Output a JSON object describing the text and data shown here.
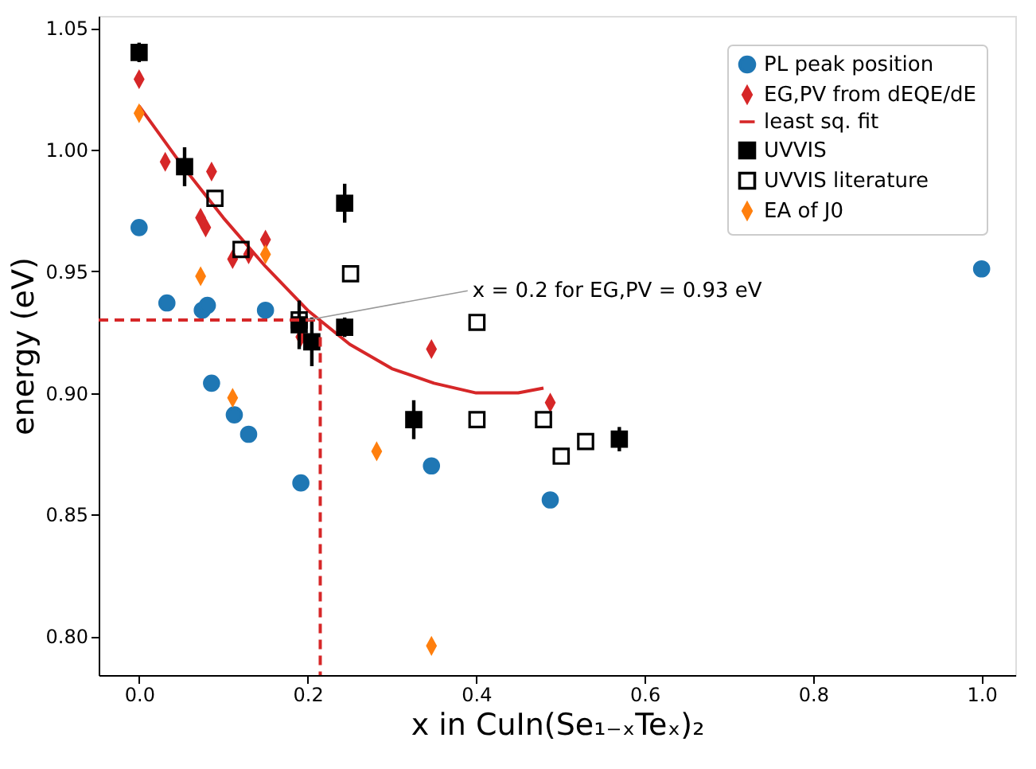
{
  "chart_data": {
    "type": "scatter",
    "xlabel": "x in CuIn(Se₁₋ₓTeₓ)₂",
    "ylabel": "energy (eV)",
    "xlim": [
      -0.048,
      1.04
    ],
    "ylim": [
      0.784,
      1.055
    ],
    "xticks": [
      {
        "value": 0,
        "label": "0.0"
      },
      0.2,
      0.4,
      0.6,
      0.8,
      {
        "value": 1,
        "label": "1.0"
      }
    ],
    "yticks": [
      {
        "value": 0.8,
        "label": "0.80"
      },
      {
        "value": 0.85,
        "label": "0.85"
      },
      {
        "value": 0.9,
        "label": "0.90"
      },
      {
        "value": 0.95,
        "label": "0.95"
      },
      {
        "value": 1.0,
        "label": "1.00"
      },
      {
        "value": 1.05,
        "label": "1.05"
      }
    ],
    "grid": false,
    "legend": "top right",
    "annotations": [
      {
        "text": "x = 0.2 for EG,PV = 0.93 eV",
        "x": 0.2,
        "y": 0.93
      }
    ],
    "series": [
      {
        "name": "PL peak position",
        "type": "scatter",
        "marker": "circle",
        "color": "#1f77b4",
        "x": [
          0,
          0.033,
          0.075,
          0.081,
          0.086,
          0.113,
          0.13,
          0.15,
          0.192,
          0.347,
          0.488,
          1.0
        ],
        "values": [
          0.968,
          0.937,
          0.934,
          0.936,
          0.904,
          0.891,
          0.883,
          0.934,
          0.863,
          0.87,
          0.856,
          0.951
        ]
      },
      {
        "name": "EG,PV from dEQE/dE",
        "type": "scatter",
        "marker": "diamond",
        "color": "#d62728",
        "x": [
          0,
          0.031,
          0.086,
          0.073,
          0.079,
          0.111,
          0.13,
          0.15,
          0.192,
          0.347,
          0.488
        ],
        "values": [
          1.029,
          0.995,
          0.991,
          0.972,
          0.968,
          0.955,
          0.957,
          0.963,
          0.923,
          0.918,
          0.896
        ]
      },
      {
        "name": "least sq. fit",
        "type": "line",
        "line_style": "solid",
        "marker": "none",
        "color": "#d62728",
        "x": [
          0,
          0.05,
          0.1,
          0.15,
          0.2,
          0.25,
          0.3,
          0.35,
          0.4,
          0.45,
          0.48
        ],
        "values": [
          1.018,
          0.994,
          0.972,
          0.952,
          0.934,
          0.92,
          0.91,
          0.904,
          0.9,
          0.9,
          0.902
        ]
      },
      {
        "name": "UVVIS",
        "type": "scatter",
        "marker": "square",
        "color": "#000000",
        "x": [
          0,
          0.054,
          0.244,
          0.244,
          0.19,
          0.205,
          0.326,
          0.57
        ],
        "values": [
          1.04,
          0.993,
          0.978,
          0.927,
          0.928,
          0.921,
          0.889,
          0.881
        ],
        "errors": [
          0.004,
          0.008,
          0.008,
          0.004,
          0.01,
          0.01,
          0.008,
          0.005
        ]
      },
      {
        "name": "UVVIS literature",
        "type": "scatter",
        "marker": "square-open",
        "color": "#000000",
        "x": [
          0.09,
          0.121,
          0.19,
          0.251,
          0.401,
          0.401,
          0.48,
          0.501,
          0.53
        ],
        "values": [
          0.98,
          0.959,
          0.93,
          0.949,
          0.929,
          0.889,
          0.889,
          0.874,
          0.88
        ]
      },
      {
        "name": "EA of J0",
        "type": "scatter",
        "marker": "diamond",
        "color": "#ff7f0e",
        "x": [
          0,
          0.073,
          0.111,
          0.15,
          0.282,
          0.347
        ],
        "values": [
          1.015,
          0.948,
          0.898,
          0.957,
          0.876,
          0.796
        ]
      },
      {
        "type": "line",
        "line_style": "dashed",
        "marker": "none",
        "color": "#d62728",
        "x": [
          -0.048,
          0.215,
          0.215
        ],
        "values": [
          0.93,
          0.93,
          0.784
        ]
      }
    ]
  }
}
